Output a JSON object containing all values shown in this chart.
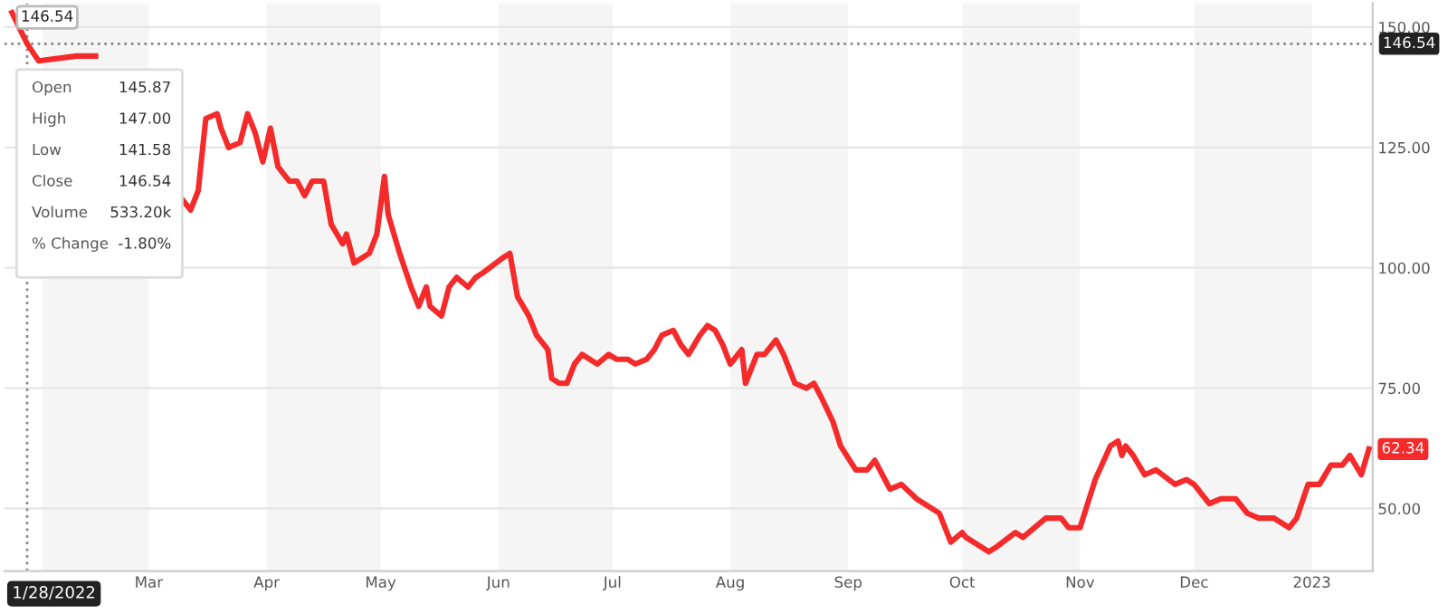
{
  "chart_data": {
    "type": "line",
    "x": [
      "2022-01-24",
      "2022-01-28",
      "2022-01-31",
      "2022-02-10",
      "2022-02-15",
      "2022-02-20",
      "2022-03-04",
      "2022-03-10",
      "2022-03-12",
      "2022-03-14",
      "2022-03-16",
      "2022-03-19",
      "2022-03-20",
      "2022-03-22",
      "2022-03-25",
      "2022-03-27",
      "2022-03-29",
      "2022-03-31",
      "2022-04-02",
      "2022-04-04",
      "2022-04-07",
      "2022-04-09",
      "2022-04-11",
      "2022-04-13",
      "2022-04-16",
      "2022-04-18",
      "2022-04-21",
      "2022-04-22",
      "2022-04-24",
      "2022-04-28",
      "2022-04-30",
      "2022-05-02",
      "2022-05-03",
      "2022-05-06",
      "2022-05-09",
      "2022-05-11",
      "2022-05-13",
      "2022-05-14",
      "2022-05-17",
      "2022-05-19",
      "2022-05-21",
      "2022-05-24",
      "2022-05-26",
      "2022-05-28",
      "2022-06-02",
      "2022-06-04",
      "2022-06-06",
      "2022-06-09",
      "2022-06-11",
      "2022-06-14",
      "2022-06-15",
      "2022-06-17",
      "2022-06-19",
      "2022-06-21",
      "2022-06-23",
      "2022-06-27",
      "2022-06-30",
      "2022-07-02",
      "2022-07-05",
      "2022-07-07",
      "2022-07-10",
      "2022-07-12",
      "2022-07-14",
      "2022-07-17",
      "2022-07-19",
      "2022-07-21",
      "2022-07-24",
      "2022-07-26",
      "2022-07-28",
      "2022-07-30",
      "2022-08-01",
      "2022-08-04",
      "2022-08-05",
      "2022-08-08",
      "2022-08-10",
      "2022-08-13",
      "2022-08-15",
      "2022-08-18",
      "2022-08-21",
      "2022-08-23",
      "2022-08-25",
      "2022-08-28",
      "2022-08-30",
      "2022-09-03",
      "2022-09-06",
      "2022-09-08",
      "2022-09-10",
      "2022-09-12",
      "2022-09-15",
      "2022-09-19",
      "2022-09-25",
      "2022-09-28",
      "2022-10-01",
      "2022-10-02",
      "2022-10-04",
      "2022-10-08",
      "2022-10-10",
      "2022-10-15",
      "2022-10-17",
      "2022-10-23",
      "2022-10-27",
      "2022-10-29",
      "2022-11-01",
      "2022-11-03",
      "2022-11-05",
      "2022-11-09",
      "2022-11-11",
      "2022-11-12",
      "2022-11-13",
      "2022-11-15",
      "2022-11-18",
      "2022-11-21",
      "2022-11-26",
      "2022-11-29",
      "2022-12-01",
      "2022-12-05",
      "2022-12-08",
      "2022-12-12",
      "2022-12-15",
      "2022-12-18",
      "2022-12-22",
      "2022-12-26",
      "2022-12-28",
      "2022-12-31",
      "2023-01-03",
      "2023-01-06",
      "2023-01-09",
      "2023-01-11",
      "2023-01-14",
      "2023-01-16"
    ],
    "series": [
      {
        "color": "#f52a2a",
        "values": [
          153,
          146.54,
          143,
          144,
          144,
          null,
          null,
          114,
          112,
          116,
          131,
          132,
          129,
          125,
          126,
          132,
          128,
          122,
          129,
          121,
          118,
          118,
          115,
          118,
          118,
          109,
          105,
          107,
          101,
          103,
          107,
          119,
          111,
          103,
          96,
          92,
          96,
          92,
          90,
          96,
          98,
          96,
          98,
          99,
          102,
          103,
          94,
          90,
          86,
          83,
          77,
          76,
          76,
          80,
          82,
          80,
          82,
          81,
          81,
          80,
          81,
          83,
          86,
          87,
          84,
          82,
          86,
          88,
          87,
          84,
          80,
          83,
          76,
          82,
          82,
          85,
          82,
          76,
          75,
          76,
          73,
          68,
          63,
          58,
          58,
          60,
          57,
          54,
          55,
          52,
          49,
          43,
          45,
          44,
          43,
          41,
          42,
          45,
          44,
          48,
          48,
          46,
          46,
          51,
          56,
          63,
          64,
          61,
          63,
          61,
          57,
          58,
          55,
          56,
          55,
          51,
          52,
          52,
          49,
          48,
          48,
          46,
          48,
          55,
          55,
          59,
          59,
          61,
          57,
          62.34
        ]
      }
    ],
    "xlim": [
      "2022-01-22",
      "2023-01-17"
    ],
    "xticks": [
      {
        "value": "2022-03-01",
        "label": "Mar"
      },
      {
        "value": "2022-04-01",
        "label": "Apr"
      },
      {
        "value": "2022-05-01",
        "label": "May"
      },
      {
        "value": "2022-06-01",
        "label": "Jun"
      },
      {
        "value": "2022-07-01",
        "label": "Jul"
      },
      {
        "value": "2022-08-01",
        "label": "Aug"
      },
      {
        "value": "2022-09-01",
        "label": "Sep"
      },
      {
        "value": "2022-10-01",
        "label": "Oct"
      },
      {
        "value": "2022-11-01",
        "label": "Nov"
      },
      {
        "value": "2022-12-01",
        "label": "Dec"
      },
      {
        "value": "2023-01-01",
        "label": "2023"
      }
    ],
    "ylim": [
      37,
      155
    ],
    "yticks": [
      {
        "value": 50,
        "label": "50.00"
      },
      {
        "value": 75,
        "label": "75.00"
      },
      {
        "value": 100,
        "label": "100.00"
      },
      {
        "value": 125,
        "label": "125.00"
      },
      {
        "value": 150,
        "label": "150.00"
      }
    ],
    "grid": "y",
    "legend": false,
    "marker": "none",
    "line_style": "solid",
    "bands": [
      {
        "axis": "x",
        "from": "2022-02-01",
        "to": "2022-03-01",
        "color": "#f5f5f5"
      },
      {
        "axis": "x",
        "from": "2022-04-01",
        "to": "2022-05-01",
        "color": "#f5f5f5"
      },
      {
        "axis": "x",
        "from": "2022-06-01",
        "to": "2022-07-01",
        "color": "#f5f5f5"
      },
      {
        "axis": "x",
        "from": "2022-08-01",
        "to": "2022-09-01",
        "color": "#f5f5f5"
      },
      {
        "axis": "x",
        "from": "2022-10-01",
        "to": "2022-11-01",
        "color": "#f5f5f5"
      },
      {
        "axis": "x",
        "from": "2022-12-01",
        "to": "2023-01-01",
        "color": "#f5f5f5"
      }
    ],
    "ref_lines": [
      {
        "axis": "y",
        "value": 146.54,
        "label": "146.54",
        "color": "#888888",
        "line_style": "dotted"
      },
      {
        "axis": "x",
        "value": "2022-01-28",
        "label": "1/28/2022",
        "color": "#888888",
        "line_style": "dotted"
      }
    ],
    "annotations": [
      "146.54",
      "Open\t145.87",
      "High\t147.00",
      "Low\t141.58",
      "Close\t146.54",
      "Volume\t533.20k",
      "% Change\t-1.80%",
      {
        "text": "62.34",
        "x": "2023-01-16",
        "y": 62.34
      }
    ]
  }
}
